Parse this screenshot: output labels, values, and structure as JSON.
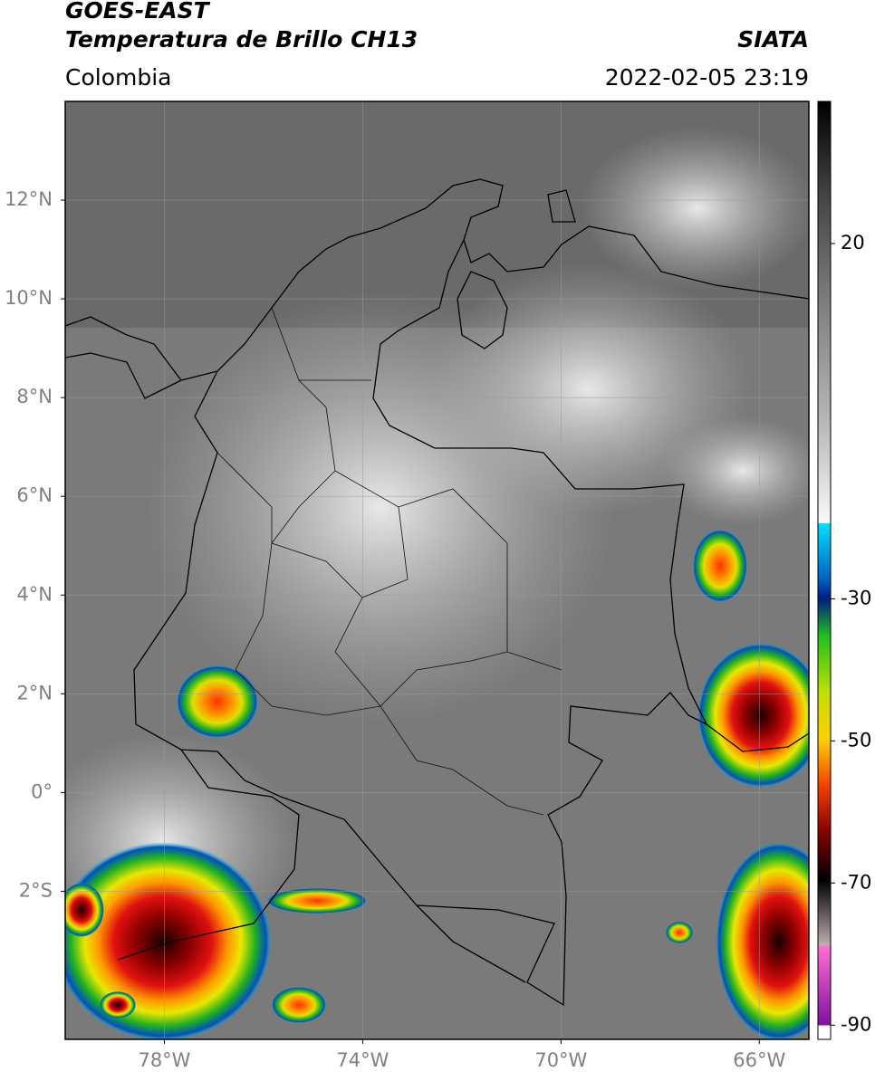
{
  "header": {
    "title": "GOES-EAST",
    "subtitle": "Temperatura de Brillo CH13",
    "region": "Colombia",
    "agency": "SIATA",
    "datetime": "2022-02-05 23:19"
  },
  "map": {
    "xlim": [
      -80,
      -65
    ],
    "ylim": [
      -5,
      14
    ],
    "grid": true,
    "xticks": [
      {
        "value": -78,
        "label": "78°W"
      },
      {
        "value": -74,
        "label": "74°W"
      },
      {
        "value": -70,
        "label": "70°W"
      },
      {
        "value": -66,
        "label": "66°W"
      }
    ],
    "yticks": [
      {
        "value": 12,
        "label": "12°N"
      },
      {
        "value": 10,
        "label": "10°N"
      },
      {
        "value": 8,
        "label": "8°N"
      },
      {
        "value": 6,
        "label": "6°N"
      },
      {
        "value": 4,
        "label": "4°N"
      },
      {
        "value": 2,
        "label": "2°N"
      },
      {
        "value": 0,
        "label": "0°"
      },
      {
        "value": -2,
        "label": "2°S"
      }
    ]
  },
  "colorbar": {
    "ylim": [
      -92,
      40
    ],
    "yticks": [
      20,
      -30,
      -50,
      -70,
      -90
    ]
  }
}
